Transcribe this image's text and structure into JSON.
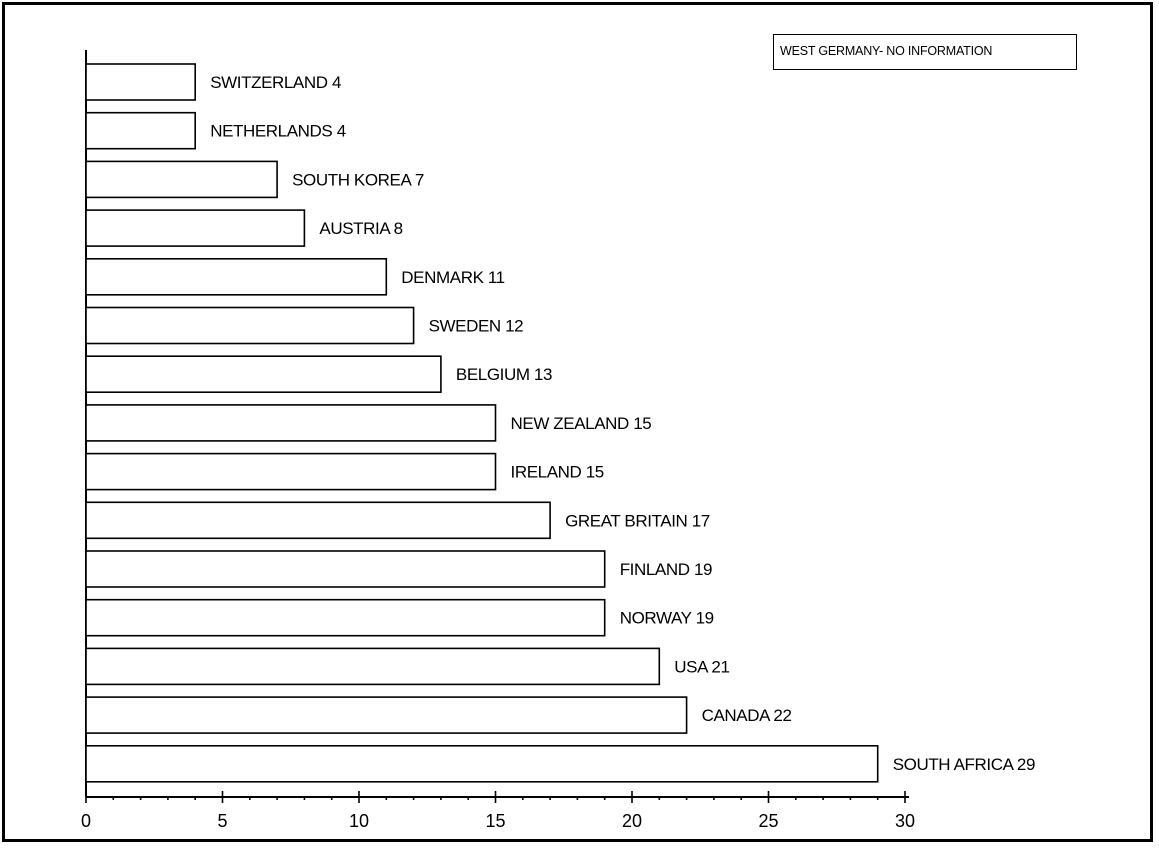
{
  "chart_data": {
    "type": "bar",
    "orientation": "horizontal",
    "categories": [
      "SWITZERLAND",
      "NETHERLANDS",
      "SOUTH KOREA",
      "AUSTRIA",
      "DENMARK",
      "SWEDEN",
      "BELGIUM",
      "NEW ZEALAND",
      "IRELAND",
      "GREAT BRITAIN",
      "FINLAND",
      "NORWAY",
      "USA",
      "CANADA",
      "SOUTH AFRICA"
    ],
    "values": [
      4,
      4,
      7,
      8,
      11,
      12,
      13,
      15,
      15,
      17,
      19,
      19,
      21,
      22,
      29
    ],
    "labels": [
      "SWITZERLAND 4",
      "NETHERLANDS 4",
      "SOUTH KOREA 7",
      "AUSTRIA 8",
      "DENMARK 11",
      "SWEDEN 12",
      "BELGIUM 13",
      "NEW ZEALAND 15",
      "IRELAND 15",
      "GREAT BRITAIN 17",
      "FINLAND 19",
      "NORWAY 19",
      "USA 21",
      "CANADA 22",
      "SOUTH AFRICA 29"
    ],
    "xlim": [
      0,
      30
    ],
    "xticks": [
      0,
      5,
      10,
      15,
      20,
      25,
      30
    ],
    "xtick_labels": [
      "0",
      "5",
      "10",
      "15",
      "20",
      "25",
      "30"
    ],
    "title": "",
    "xlabel": "",
    "ylabel": "",
    "grid": false,
    "legend": "none",
    "annotation": "WEST GERMANY- NO INFORMATION",
    "annotation_position": "top-right",
    "bar_fill": "#ffffff",
    "bar_stroke": "#000000"
  }
}
